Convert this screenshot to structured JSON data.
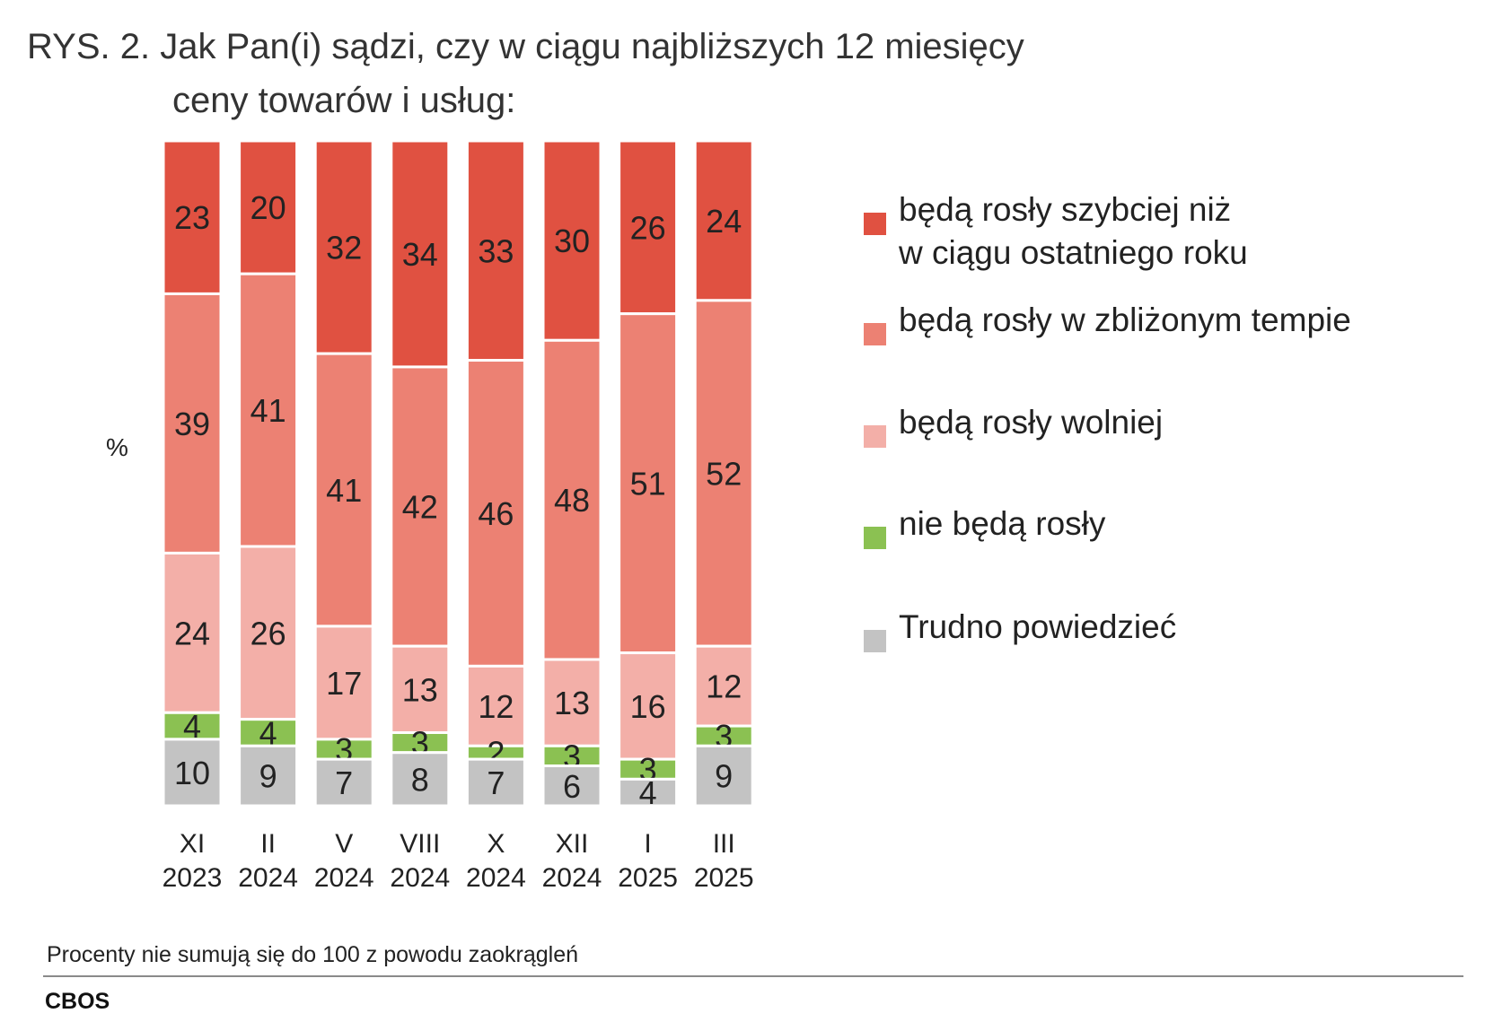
{
  "title": {
    "line1": "RYS. 2. Jak Pan(i) sądzi, czy w ciągu najbliższych 12 miesięcy",
    "line2": "ceny towarów i usług:"
  },
  "unit_label": "%",
  "footnote": "Procenty nie sumują się do 100 z powodu zaokrągleń",
  "source": "CBOS",
  "chart_data": {
    "type": "bar",
    "stacked": true,
    "orientation": "vertical",
    "title": "RYS. 2. Jak Pan(i) sądzi, czy w ciągu najbliższych 12 miesięcy ceny towarów i usług:",
    "ylabel": "%",
    "categories": [
      {
        "month": "XI",
        "year": "2023"
      },
      {
        "month": "II",
        "year": "2024"
      },
      {
        "month": "V",
        "year": "2024"
      },
      {
        "month": "VIII",
        "year": "2024"
      },
      {
        "month": "X",
        "year": "2024"
      },
      {
        "month": "XII",
        "year": "2024"
      },
      {
        "month": "I",
        "year": "2025"
      },
      {
        "month": "III",
        "year": "2025"
      }
    ],
    "series": [
      {
        "name": "będą rosły szybciej niż\nw ciągu ostatniego roku",
        "color": "#e05141",
        "values": [
          23,
          20,
          32,
          34,
          33,
          30,
          26,
          24
        ]
      },
      {
        "name": "będą rosły w zbliżonym tempie",
        "color": "#ec8173",
        "values": [
          39,
          41,
          41,
          42,
          46,
          48,
          51,
          52
        ]
      },
      {
        "name": "będą rosły wolniej",
        "color": "#f3afa8",
        "values": [
          24,
          26,
          17,
          13,
          12,
          13,
          16,
          12
        ]
      },
      {
        "name": "nie będą rosły",
        "color": "#8bc152",
        "values": [
          4,
          4,
          3,
          3,
          2,
          3,
          3,
          3
        ]
      },
      {
        "name": "Trudno powiedzieć",
        "color": "#c3c3c3",
        "values": [
          10,
          9,
          7,
          8,
          7,
          6,
          4,
          9
        ]
      }
    ],
    "legend_position": "right",
    "grid": false
  }
}
